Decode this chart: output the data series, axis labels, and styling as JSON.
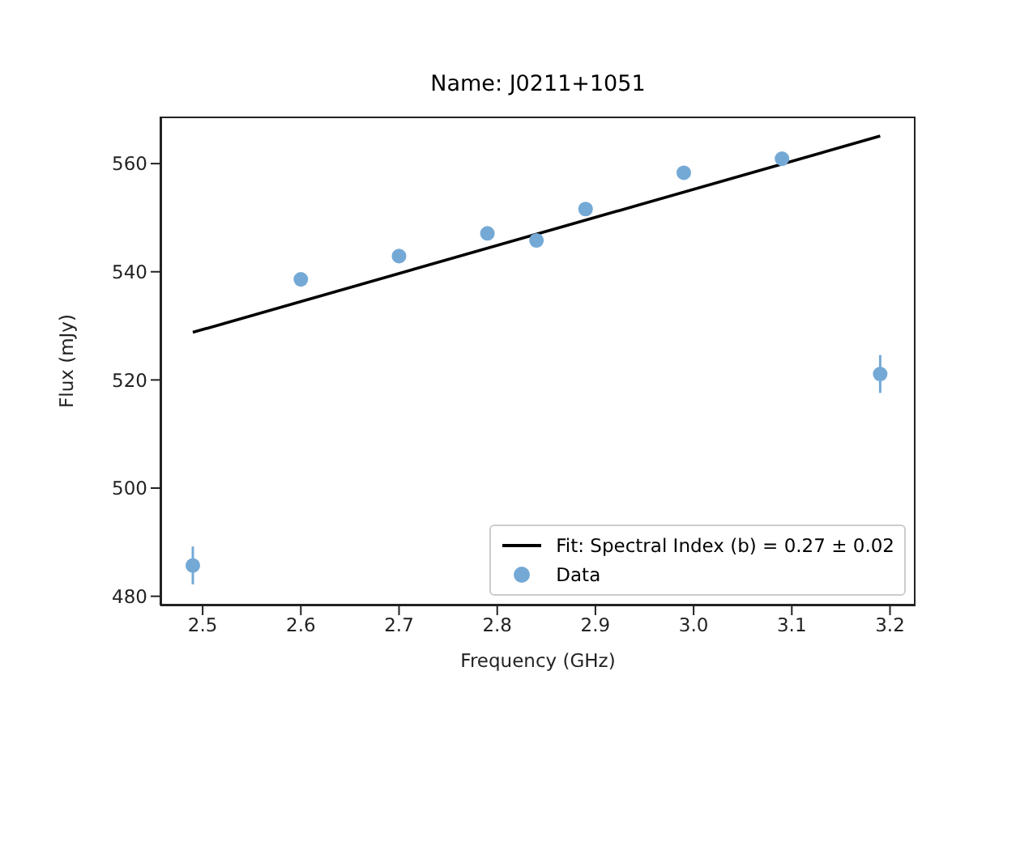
{
  "chart_data": {
    "type": "scatter",
    "title": "Name: J0211+1051",
    "xlabel": "Frequency (GHz)",
    "ylabel": "Flux (mJy)",
    "xlim": [
      2.457,
      3.226
    ],
    "xticks": [
      2.5,
      2.6,
      2.7,
      2.8,
      2.9,
      {
        "value": 3,
        "label": "3.0"
      },
      3.1,
      3.2
    ],
    "ylim": [
      478.3,
      568.7
    ],
    "yticks": [
      480,
      500,
      520,
      540,
      560
    ],
    "legend": "bottom right",
    "grid": false,
    "series": [
      {
        "name": "Fit: Spectral Index (b) = 0.27 ± 0.02",
        "type": "line",
        "color": "#000000",
        "marker": "none",
        "line_style": "solid",
        "x": [
          2.49,
          3.19
        ],
        "values": [
          528.8,
          565.1
        ]
      },
      {
        "name": "Data",
        "type": "scatter",
        "color": "#74a9d6",
        "marker": "circle",
        "x": [
          2.49,
          2.6,
          2.7,
          2.79,
          2.84,
          2.89,
          2.99,
          3.09,
          3.19
        ],
        "values": [
          485.7,
          538.6,
          542.9,
          547.1,
          545.8,
          551.6,
          558.3,
          560.9,
          521.1
        ],
        "errors": [
          3.5,
          1.2,
          1,
          1.2,
          1,
          1,
          1,
          1.2,
          3.5
        ]
      }
    ]
  }
}
